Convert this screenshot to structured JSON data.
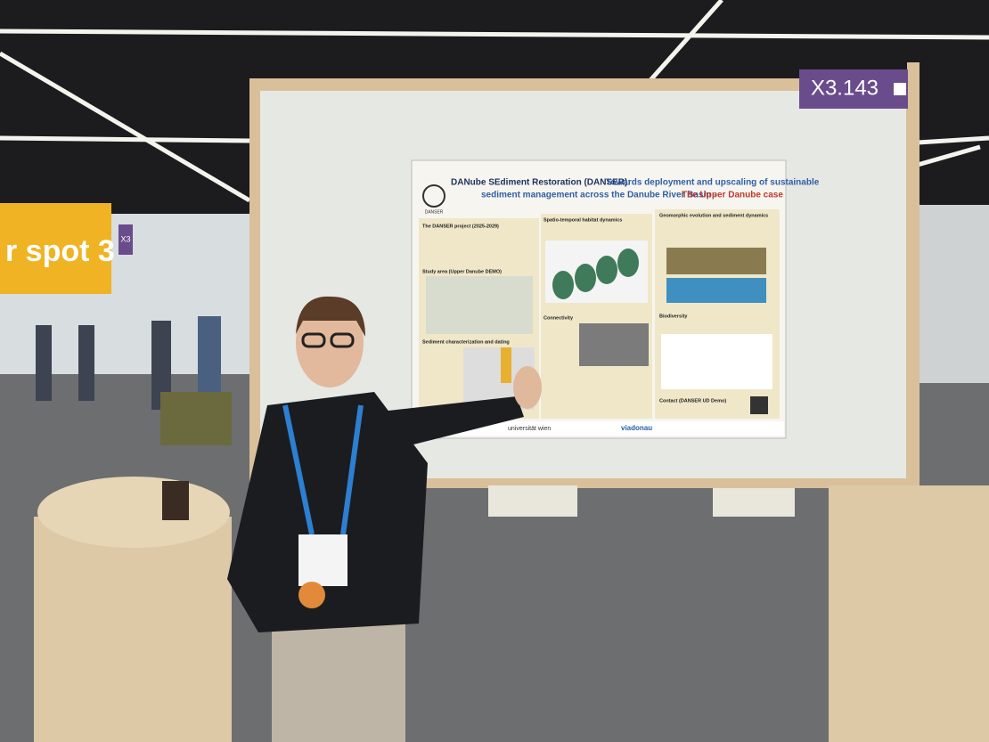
{
  "sign": {
    "board_number": "X3.143",
    "banner": "r spot 3",
    "aisle": "X3"
  },
  "poster": {
    "title_lead": "DANube SEdiment Restoration (DANSER):",
    "title_rest": "Towards deployment and upscaling of sustainable",
    "title_line2": "sediment management across the Danube River Basin -",
    "title_case": "The Upper Danube case",
    "logo": "DANSER",
    "sections": [
      "The DANSER project (2025-2029)",
      "Spatio-temporal habitat dynamics",
      "Geomorphic evolution and sediment dynamics",
      "Study area (Upper Danube DEMO)",
      "Connectivity",
      "Biodiversity",
      "Sediment characterization and dating",
      "Contact (DANSER UD Demo)"
    ],
    "footer_logos": [
      "universität wien",
      "viadonau"
    ]
  }
}
